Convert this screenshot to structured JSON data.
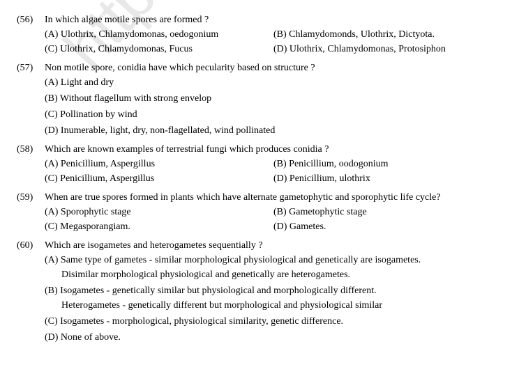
{
  "watermark": "https://www.studi",
  "questions": [
    {
      "num": "(56)",
      "text": "In which algae motile spores are formed ?",
      "layout": "two-col",
      "options": [
        "(A) Ulothrix, Chlamydomonas, oedogonium",
        "(B) Chlamydomonds, Ulothrix, Dictyota.",
        "(C) Ulothrix, Chlamydomonas, Fucus",
        "(D) Ulothrix, Chlamydomonas, Protosiphon"
      ]
    },
    {
      "num": "(57)",
      "text": "Non motile spore, conidia have which pecularity based on structure ?",
      "layout": "single",
      "options": [
        "(A) Light and dry",
        "(B) Without flagellum with strong envelop",
        "(C) Pollination by wind",
        "(D) Inumerable, light, dry, non-flagellated, wind pollinated"
      ]
    },
    {
      "num": "(58)",
      "text": "Which are known examples of terrestrial fungi which produces conidia ?",
      "layout": "two-col",
      "options": [
        "(A) Penicillium, Aspergillus",
        "(B) Penicillium, oodogonium",
        "(C) Penicillium, Aspergillus",
        "(D) Penicillium, ulothrix"
      ]
    },
    {
      "num": "(59)",
      "text": "When are true spores formed in plants which have alternate gametophytic and sporophytic life cycle?",
      "layout": "two-col",
      "options": [
        "(A) Sporophytic stage",
        "(B) Gametophytic stage",
        "(C) Megasporangiam.",
        "(D) Gametes."
      ]
    },
    {
      "num": "(60)",
      "text": "Which are isogametes and heterogametes sequentially ?",
      "layout": "wrap",
      "options_wrap": [
        {
          "main": "(A) Same type of gametes - similar morphological physiological and genetically are isogametes.",
          "sub": "Disimilar morphological physiological and genetically are heterogametes."
        },
        {
          "main": "(B) Isogametes - genetically similar but physiological and morphologically different.",
          "sub": "Heterogametes - genetically different but morphological and physiological similar"
        },
        {
          "main": "(C) Isogametes - morphological, physiological similarity, genetic difference.",
          "sub": ""
        },
        {
          "main": "(D) None of above.",
          "sub": ""
        }
      ]
    }
  ]
}
